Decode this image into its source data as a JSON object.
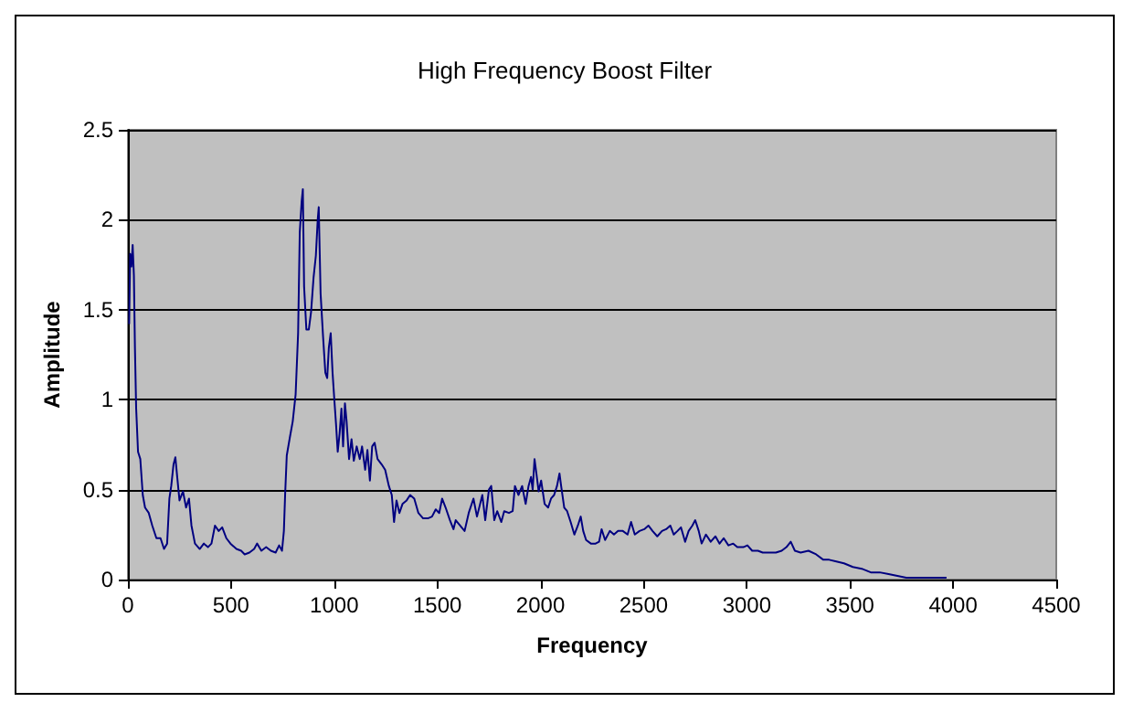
{
  "chart_data": {
    "type": "line",
    "title": "High Frequency Boost Filter",
    "xlabel": "Frequency",
    "ylabel": "Amplitude",
    "xlim": [
      0,
      4500
    ],
    "xticks": [
      0,
      500,
      1000,
      1500,
      2000,
      2500,
      3000,
      3500,
      4000,
      4500
    ],
    "ylim": [
      0,
      2.5
    ],
    "yticks": [
      0,
      0.5,
      1,
      1.5,
      2,
      2.5
    ],
    "grid": "y",
    "series": [
      {
        "color": "#000080",
        "x": [
          6,
          11,
          17,
          23,
          29,
          34,
          40,
          49,
          60,
          72,
          83,
          101,
          118,
          138,
          158,
          175,
          190,
          201,
          210,
          221,
          230,
          239,
          250,
          267,
          282,
          296,
          308,
          325,
          348,
          368,
          388,
          405,
          422,
          440,
          457,
          477,
          497,
          526,
          549,
          566,
          589,
          612,
          626,
          647,
          670,
          693,
          716,
          733,
          747,
          756,
          762,
          770,
          785,
          799,
          813,
          825,
          833,
          842,
          848,
          854,
          865,
          877,
          888,
          900,
          911,
          920,
          925,
          934,
          946,
          957,
          966,
          974,
          983,
          992,
          1000,
          1009,
          1017,
          1026,
          1035,
          1043,
          1052,
          1060,
          1072,
          1084,
          1095,
          1109,
          1124,
          1135,
          1150,
          1161,
          1173,
          1184,
          1196,
          1210,
          1230,
          1247,
          1265,
          1279,
          1290,
          1302,
          1316,
          1331,
          1351,
          1368,
          1388,
          1408,
          1431,
          1454,
          1474,
          1492,
          1509,
          1523,
          1540,
          1561,
          1578,
          1589,
          1632,
          1652,
          1675,
          1692,
          1718,
          1732,
          1750,
          1761,
          1776,
          1790,
          1810,
          1824,
          1847,
          1865,
          1876,
          1893,
          1911,
          1928,
          1942,
          1954,
          1962,
          1971,
          1980,
          1991,
          2003,
          2020,
          2037,
          2051,
          2066,
          2080,
          2092,
          2100,
          2115,
          2129,
          2146,
          2164,
          2181,
          2195,
          2207,
          2221,
          2244,
          2267,
          2284,
          2296,
          2313,
          2336,
          2356,
          2376,
          2399,
          2422,
          2439,
          2457,
          2480,
          2503,
          2523,
          2543,
          2566,
          2589,
          2609,
          2629,
          2646,
          2664,
          2681,
          2701,
          2718,
          2736,
          2750,
          2767,
          2781,
          2802,
          2825,
          2848,
          2868,
          2888,
          2911,
          2934,
          2954,
          2983,
          3003,
          3026,
          3054,
          3077,
          3100,
          3141,
          3169,
          3192,
          3213,
          3233,
          3261,
          3299,
          3336,
          3371,
          3399,
          3434,
          3471,
          3514,
          3557,
          3601,
          3644,
          3687,
          3730,
          3773,
          3859,
          3968
        ],
        "values": [
          1.42,
          1.81,
          1.74,
          1.86,
          1.69,
          1.29,
          0.95,
          0.71,
          0.67,
          0.47,
          0.4,
          0.37,
          0.3,
          0.23,
          0.23,
          0.17,
          0.2,
          0.45,
          0.52,
          0.64,
          0.68,
          0.57,
          0.44,
          0.49,
          0.4,
          0.45,
          0.3,
          0.2,
          0.17,
          0.2,
          0.18,
          0.2,
          0.3,
          0.27,
          0.29,
          0.23,
          0.2,
          0.17,
          0.16,
          0.14,
          0.15,
          0.17,
          0.2,
          0.16,
          0.18,
          0.16,
          0.15,
          0.19,
          0.16,
          0.27,
          0.47,
          0.69,
          0.79,
          0.88,
          1.03,
          1.37,
          1.93,
          2.1,
          2.17,
          1.63,
          1.39,
          1.39,
          1.49,
          1.68,
          1.8,
          2.0,
          2.07,
          1.59,
          1.35,
          1.15,
          1.12,
          1.29,
          1.37,
          1.15,
          1.01,
          0.86,
          0.71,
          0.81,
          0.95,
          0.74,
          0.98,
          0.88,
          0.67,
          0.78,
          0.66,
          0.74,
          0.67,
          0.74,
          0.61,
          0.72,
          0.55,
          0.74,
          0.76,
          0.67,
          0.64,
          0.61,
          0.52,
          0.47,
          0.32,
          0.44,
          0.37,
          0.42,
          0.44,
          0.47,
          0.45,
          0.37,
          0.34,
          0.34,
          0.35,
          0.39,
          0.37,
          0.45,
          0.4,
          0.33,
          0.28,
          0.33,
          0.27,
          0.37,
          0.45,
          0.35,
          0.47,
          0.33,
          0.5,
          0.52,
          0.33,
          0.38,
          0.32,
          0.38,
          0.37,
          0.38,
          0.52,
          0.47,
          0.52,
          0.42,
          0.52,
          0.57,
          0.5,
          0.67,
          0.59,
          0.49,
          0.55,
          0.42,
          0.4,
          0.45,
          0.47,
          0.52,
          0.59,
          0.52,
          0.4,
          0.38,
          0.32,
          0.25,
          0.3,
          0.35,
          0.27,
          0.22,
          0.2,
          0.2,
          0.21,
          0.28,
          0.22,
          0.27,
          0.25,
          0.27,
          0.27,
          0.25,
          0.32,
          0.25,
          0.27,
          0.28,
          0.3,
          0.27,
          0.24,
          0.27,
          0.28,
          0.3,
          0.25,
          0.27,
          0.29,
          0.21,
          0.27,
          0.3,
          0.33,
          0.27,
          0.2,
          0.25,
          0.21,
          0.24,
          0.2,
          0.23,
          0.19,
          0.2,
          0.18,
          0.18,
          0.19,
          0.16,
          0.16,
          0.15,
          0.15,
          0.15,
          0.16,
          0.18,
          0.21,
          0.16,
          0.15,
          0.16,
          0.14,
          0.11,
          0.11,
          0.1,
          0.09,
          0.07,
          0.06,
          0.04,
          0.04,
          0.03,
          0.02,
          0.01,
          0.01,
          0.01
        ]
      }
    ]
  }
}
